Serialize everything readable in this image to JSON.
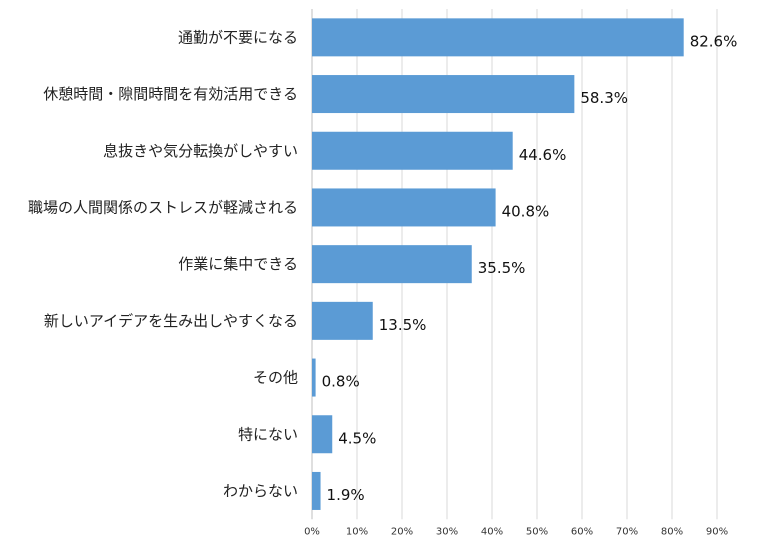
{
  "chart_data": {
    "type": "bar",
    "orientation": "horizontal",
    "categories": [
      "通勤が不要になる",
      "休憩時間・隙間時間を有効活用できる",
      "息抜きや気分転換がしやすい",
      "職場の人間関係のストレスが軽減される",
      "作業に集中できる",
      "新しいアイデアを生み出しやすくなる",
      "その他",
      "特にない",
      "わからない"
    ],
    "values": [
      82.6,
      58.3,
      44.6,
      40.8,
      35.5,
      13.5,
      0.8,
      4.5,
      1.9
    ],
    "value_labels": [
      "82.6%",
      "58.3%",
      "44.6%",
      "40.8%",
      "35.5%",
      "13.5%",
      "0.8%",
      "4.5%",
      "1.9%"
    ],
    "xlim": [
      0,
      90
    ],
    "x_ticks": [
      0,
      10,
      20,
      30,
      40,
      50,
      60,
      70,
      80,
      90
    ],
    "x_tick_labels": [
      "0%",
      "10%",
      "20%",
      "30%",
      "40%",
      "50%",
      "60%",
      "70%",
      "80%",
      "90%"
    ],
    "grid": true,
    "bar_color": "#5b9bd5",
    "grid_color": "#d9d9d9"
  }
}
